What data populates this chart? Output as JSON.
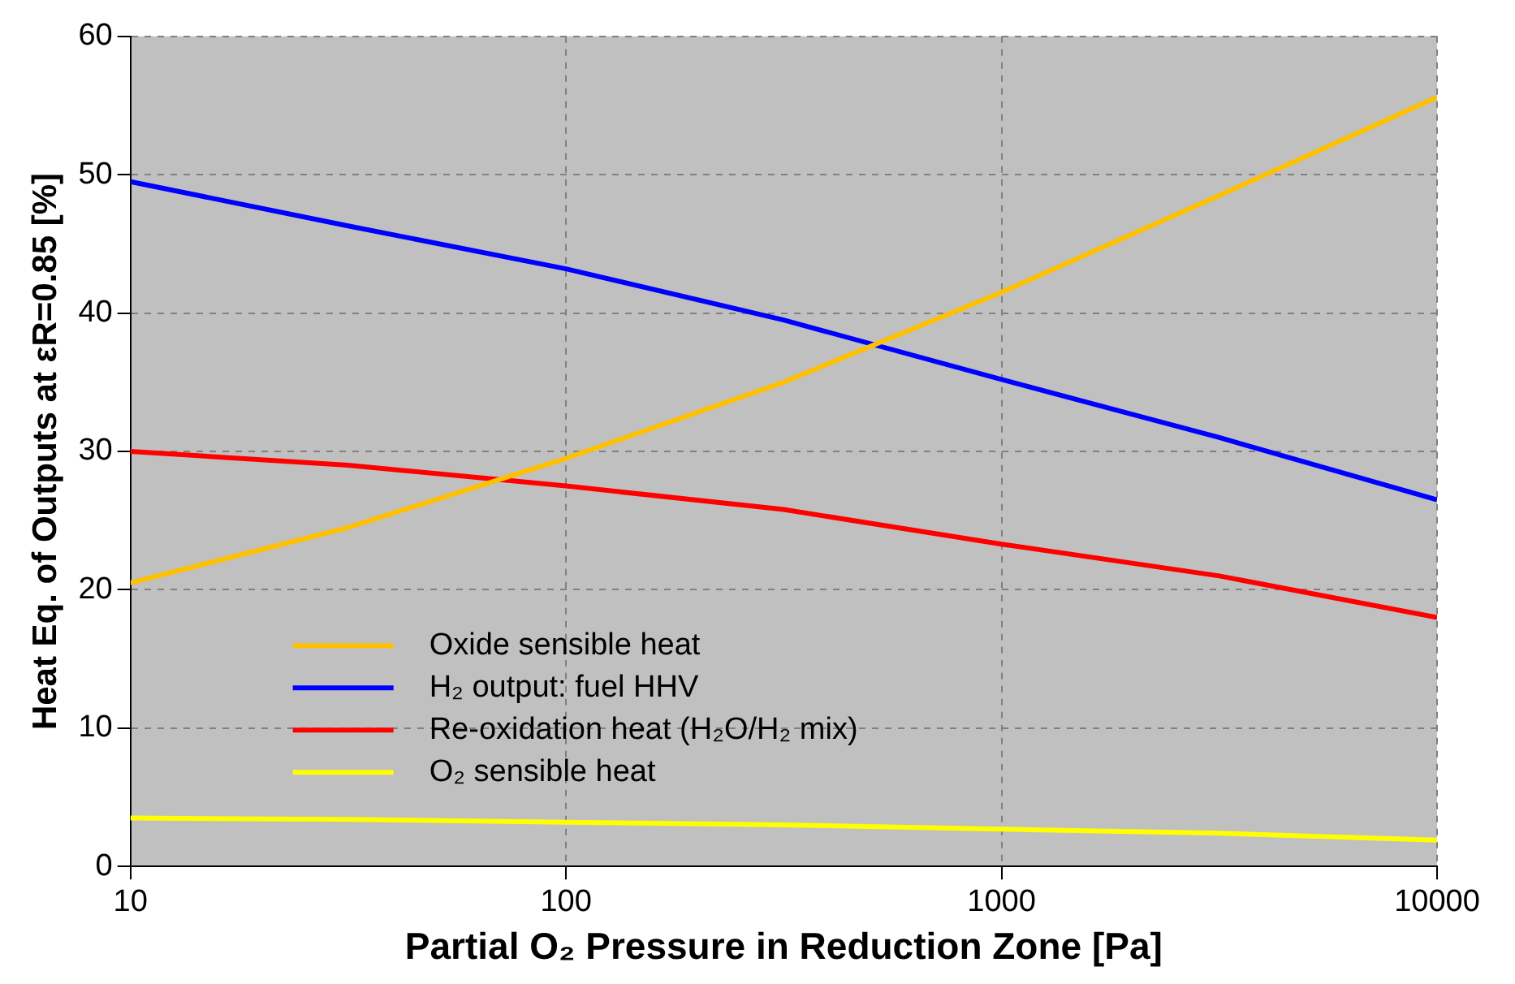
{
  "chart_data": {
    "type": "line",
    "xlabel": "Partial O₂ Pressure in Reduction Zone [Pa]",
    "ylabel": "Heat Eq. of Outputs at εR=0.85 [%]",
    "x": [
      10,
      31.6,
      100,
      316,
      1000,
      3162,
      10000
    ],
    "series": [
      {
        "name": "Oxide sensible heat",
        "color": "#ffc000",
        "values": [
          20.5,
          24.5,
          29.5,
          35,
          41.5,
          48.5,
          55.6
        ]
      },
      {
        "name": "H₂ output: fuel HHV",
        "color": "#0000ff",
        "values": [
          49.5,
          46.3,
          43.2,
          39.5,
          35.2,
          31,
          26.5
        ]
      },
      {
        "name": "Re-oxidation heat (H₂O/H₂ mix)",
        "color": "#ff0000",
        "values": [
          30,
          29,
          27.5,
          25.8,
          23.3,
          21,
          18
        ]
      },
      {
        "name": "O₂ sensible heat",
        "color": "#ffff00",
        "values": [
          3.5,
          3.4,
          3.2,
          3,
          2.7,
          2.4,
          1.9
        ]
      }
    ],
    "log": "x",
    "xlim": [
      10,
      10000
    ],
    "xticks": [
      10,
      100,
      1000,
      10000
    ],
    "ylim": [
      0,
      60
    ],
    "yticks": [
      0,
      10,
      20,
      30,
      40,
      50,
      60
    ],
    "grid": true,
    "legend": "bottom left",
    "marker": "none",
    "line_style": "solid"
  }
}
